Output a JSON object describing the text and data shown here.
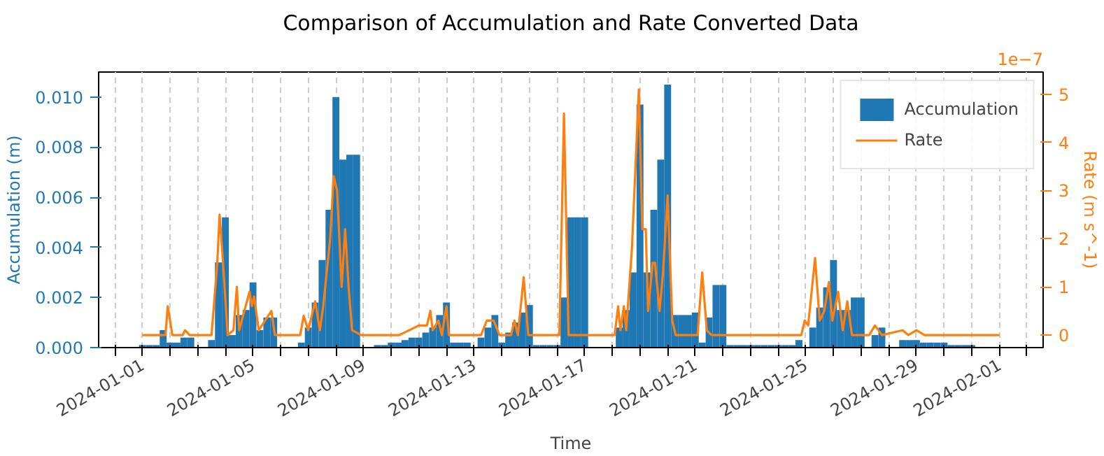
{
  "chart_data": {
    "type": "bar",
    "title": "Comparison of Accumulation and Rate Converted Data",
    "xlabel": "Time",
    "ylabel": "Accumulation (m)",
    "y2label": "Rate (m s^-1)",
    "annotations": [
      "1e−7"
    ],
    "xlim": [
      "2023-12-30T10:00",
      "2024-02-02T14:00"
    ],
    "xticks": [
      {
        "value": "2023-12-31",
        "label": null
      },
      {
        "value": "2024-01-01",
        "label": "2024-01-01"
      },
      {
        "value": "2024-01-02",
        "label": null
      },
      {
        "value": "2024-01-03",
        "label": null
      },
      {
        "value": "2024-01-04",
        "label": null
      },
      {
        "value": "2024-01-05",
        "label": "2024-01-05"
      },
      {
        "value": "2024-01-06",
        "label": null
      },
      {
        "value": "2024-01-07",
        "label": null
      },
      {
        "value": "2024-01-08",
        "label": null
      },
      {
        "value": "2024-01-09",
        "label": "2024-01-09"
      },
      {
        "value": "2024-01-10",
        "label": null
      },
      {
        "value": "2024-01-11",
        "label": null
      },
      {
        "value": "2024-01-12",
        "label": null
      },
      {
        "value": "2024-01-13",
        "label": "2024-01-13"
      },
      {
        "value": "2024-01-14",
        "label": null
      },
      {
        "value": "2024-01-15",
        "label": null
      },
      {
        "value": "2024-01-16",
        "label": null
      },
      {
        "value": "2024-01-17",
        "label": "2024-01-17"
      },
      {
        "value": "2024-01-18",
        "label": null
      },
      {
        "value": "2024-01-19",
        "label": null
      },
      {
        "value": "2024-01-20",
        "label": null
      },
      {
        "value": "2024-01-21",
        "label": "2024-01-21"
      },
      {
        "value": "2024-01-22",
        "label": null
      },
      {
        "value": "2024-01-23",
        "label": null
      },
      {
        "value": "2024-01-24",
        "label": null
      },
      {
        "value": "2024-01-25",
        "label": "2024-01-25"
      },
      {
        "value": "2024-01-26",
        "label": null
      },
      {
        "value": "2024-01-27",
        "label": null
      },
      {
        "value": "2024-01-28",
        "label": null
      },
      {
        "value": "2024-01-29",
        "label": "2024-01-29"
      },
      {
        "value": "2024-01-30",
        "label": null
      },
      {
        "value": "2024-01-31",
        "label": null
      },
      {
        "value": "2024-02-01",
        "label": "2024-02-01"
      },
      {
        "value": "2024-02-02",
        "label": null
      }
    ],
    "ylim": [
      0,
      0.011
    ],
    "yticks": [
      {
        "value": 0,
        "label": "0.000"
      },
      {
        "value": 0.002,
        "label": "0.002"
      },
      {
        "value": 0.004,
        "label": "0.004"
      },
      {
        "value": 0.006,
        "label": "0.006"
      },
      {
        "value": 0.008,
        "label": "0.008"
      },
      {
        "value": 0.01,
        "label": "0.010"
      }
    ],
    "y2lim": [
      -0.26,
      5.46
    ],
    "y2ticks": [
      0,
      1,
      2,
      3,
      4,
      5
    ],
    "grid": "x",
    "legend": "top right",
    "series": [
      {
        "name": "Accumulation",
        "color": "#1f77b4",
        "x": [
          "2024-01-01T00:00",
          "2024-01-01T06:00",
          "2024-01-01T12:00",
          "2024-01-01T18:00",
          "2024-01-02T00:00",
          "2024-01-02T06:00",
          "2024-01-02T12:00",
          "2024-01-02T18:00",
          "2024-01-03T12:00",
          "2024-01-03T18:00",
          "2024-01-04T00:00",
          "2024-01-04T06:00",
          "2024-01-04T12:00",
          "2024-01-04T18:00",
          "2024-01-05T00:00",
          "2024-01-05T06:00",
          "2024-01-05T12:00",
          "2024-01-05T18:00",
          "2024-01-06T18:00",
          "2024-01-07T00:00",
          "2024-01-07T06:00",
          "2024-01-07T12:00",
          "2024-01-07T18:00",
          "2024-01-08T00:00",
          "2024-01-08T06:00",
          "2024-01-08T12:00",
          "2024-01-08T18:00",
          "2024-01-09T12:00",
          "2024-01-09T18:00",
          "2024-01-10T00:00",
          "2024-01-10T06:00",
          "2024-01-10T12:00",
          "2024-01-10T18:00",
          "2024-01-11T00:00",
          "2024-01-11T06:00",
          "2024-01-11T12:00",
          "2024-01-11T18:00",
          "2024-01-12T00:00",
          "2024-01-12T06:00",
          "2024-01-12T12:00",
          "2024-01-12T18:00",
          "2024-01-13T06:00",
          "2024-01-13T12:00",
          "2024-01-13T18:00",
          "2024-01-14T00:00",
          "2024-01-14T06:00",
          "2024-01-14T12:00",
          "2024-01-14T18:00",
          "2024-01-15T00:00",
          "2024-01-15T06:00",
          "2024-01-15T12:00",
          "2024-01-15T18:00",
          "2024-01-16T00:00",
          "2024-01-16T06:00",
          "2024-01-16T12:00",
          "2024-01-16T18:00",
          "2024-01-17T00:00",
          "2024-01-18T06:00",
          "2024-01-18T12:00",
          "2024-01-18T18:00",
          "2024-01-19T00:00",
          "2024-01-19T06:00",
          "2024-01-19T12:00",
          "2024-01-19T18:00",
          "2024-01-20T00:00",
          "2024-01-20T06:00",
          "2024-01-20T12:00",
          "2024-01-20T18:00",
          "2024-01-21T00:00",
          "2024-01-21T06:00",
          "2024-01-21T12:00",
          "2024-01-21T18:00",
          "2024-01-22T00:00",
          "2024-01-22T06:00",
          "2024-01-22T12:00",
          "2024-01-22T18:00",
          "2024-01-23T00:00",
          "2024-01-23T06:00",
          "2024-01-23T12:00",
          "2024-01-23T18:00",
          "2024-01-24T00:00",
          "2024-01-24T06:00",
          "2024-01-24T12:00",
          "2024-01-24T18:00",
          "2024-01-25T06:00",
          "2024-01-25T12:00",
          "2024-01-25T18:00",
          "2024-01-26T00:00",
          "2024-01-26T06:00",
          "2024-01-26T12:00",
          "2024-01-26T18:00",
          "2024-01-27T00:00",
          "2024-01-27T12:00",
          "2024-01-27T18:00",
          "2024-01-28T12:00",
          "2024-01-28T18:00",
          "2024-01-29T00:00",
          "2024-01-29T06:00",
          "2024-01-29T12:00",
          "2024-01-29T18:00",
          "2024-01-30T00:00",
          "2024-01-30T06:00",
          "2024-01-30T12:00",
          "2024-01-30T18:00",
          "2024-01-31T00:00"
        ],
        "values": [
          0.0001,
          0.0001,
          0.0001,
          0.0007,
          0.0002,
          0.0002,
          0.0004,
          0.0004,
          0.0003,
          0.0034,
          0.0052,
          0.0005,
          0.0013,
          0.0015,
          0.0026,
          0.0007,
          0.0012,
          0.0012,
          0.0002,
          0.0008,
          0.0018,
          0.0035,
          0.0055,
          0.01,
          0.0075,
          0.0077,
          0.0077,
          0.0001,
          0.0001,
          0.0002,
          0.0002,
          0.0003,
          0.0004,
          0.0004,
          0.0006,
          0.0008,
          0.0013,
          0.0018,
          0.0002,
          0.0002,
          0.0002,
          0.0004,
          0.0008,
          0.0013,
          0.0002,
          0.0006,
          0.001,
          0.0014,
          0.0017,
          0.0001,
          0.0001,
          0.0001,
          0.0001,
          0.002,
          0.0052,
          0.0052,
          0.0052,
          0.0008,
          0.0015,
          0.003,
          0.0097,
          0.003,
          0.0055,
          0.0075,
          0.0105,
          0.0013,
          0.0013,
          0.0013,
          0.0014,
          0.0002,
          0.0012,
          0.0025,
          0.0025,
          0.0001,
          0.0001,
          0.0001,
          0.0001,
          0.0001,
          0.0001,
          0.0001,
          0.0001,
          0.0001,
          0.0001,
          0.0003,
          0.0008,
          0.0016,
          0.0024,
          0.0035,
          0.0015,
          0.0015,
          0.002,
          0.002,
          0.0005,
          0.0008,
          0.0003,
          0.0003,
          0.0003,
          0.0002,
          0.0002,
          0.0002,
          0.0002,
          0.0001,
          0.0001,
          0.0001,
          0.0001
        ]
      },
      {
        "name": "Rate",
        "type": "line",
        "axis": "y2",
        "color": "#ff7f0e",
        "x": [
          "2024-01-01T00:00",
          "2024-01-01T20:00",
          "2024-01-01T22:00",
          "2024-01-02T02:00",
          "2024-01-02T11:00",
          "2024-01-02T13:00",
          "2024-01-02T17:00",
          "2024-01-03T12:00",
          "2024-01-03T17:00",
          "2024-01-03T19:00",
          "2024-01-03T22:00",
          "2024-01-04T02:00",
          "2024-01-04T07:00",
          "2024-01-04T10:00",
          "2024-01-04T12:00",
          "2024-01-04T21:00",
          "2024-01-04T23:00",
          "2024-01-05T01:00",
          "2024-01-05T05:00",
          "2024-01-05T16:00",
          "2024-01-05T19:00",
          "2024-01-06T17:00",
          "2024-01-06T20:00",
          "2024-01-07T00:00",
          "2024-01-07T06:00",
          "2024-01-07T10:00",
          "2024-01-07T13:00",
          "2024-01-07T19:00",
          "2024-01-07T22:00",
          "2024-01-08T01:00",
          "2024-01-08T05:00",
          "2024-01-08T08:00",
          "2024-01-08T11:00",
          "2024-01-08T14:00",
          "2024-01-08T22:00",
          "2024-01-09T05:00",
          "2024-01-10T07:00",
          "2024-01-11T00:00",
          "2024-01-11T07:00",
          "2024-01-11T10:00",
          "2024-01-11T12:00",
          "2024-01-11T17:00",
          "2024-01-11T20:00",
          "2024-01-12T00:00",
          "2024-01-12T02:00",
          "2024-01-12T07:00",
          "2024-01-13T06:00",
          "2024-01-13T11:00",
          "2024-01-13T17:00",
          "2024-01-13T22:00",
          "2024-01-14T08:00",
          "2024-01-14T11:00",
          "2024-01-14T14:00",
          "2024-01-14T19:00",
          "2024-01-14T23:00",
          "2024-01-16T02:00",
          "2024-01-16T06:00",
          "2024-01-16T10:00",
          "2024-01-18T02:00",
          "2024-01-18T05:00",
          "2024-01-18T07:00",
          "2024-01-18T10:00",
          "2024-01-18T12:00",
          "2024-01-18T17:00",
          "2024-01-18T23:00",
          "2024-01-19T02:00",
          "2024-01-19T05:00",
          "2024-01-19T07:00",
          "2024-01-19T11:00",
          "2024-01-19T13:00",
          "2024-01-19T17:00",
          "2024-01-19T20:00",
          "2024-01-20T00:00",
          "2024-01-20T04:00",
          "2024-01-20T07:00",
          "2024-01-20T12:00",
          "2024-01-21T02:00",
          "2024-01-21T06:00",
          "2024-01-21T10:00",
          "2024-01-21T14:00",
          "2024-01-24T20:00",
          "2024-01-24T23:00",
          "2024-01-25T02:00",
          "2024-01-25T08:00",
          "2024-01-25T12:00",
          "2024-01-25T16:00",
          "2024-01-25T20:00",
          "2024-01-25T23:00",
          "2024-01-26T04:00",
          "2024-01-26T08:00",
          "2024-01-26T12:00",
          "2024-01-26T16:00",
          "2024-01-27T07:00",
          "2024-01-27T12:00",
          "2024-01-27T18:00",
          "2024-01-28T12:00",
          "2024-01-28T17:00",
          "2024-01-29T00:00",
          "2024-01-29T07:00",
          "2024-02-01T00:00"
        ],
        "values": [
          0,
          0,
          0.6,
          0,
          0,
          0.1,
          0,
          0,
          1.5,
          2.5,
          1.5,
          0,
          0.1,
          1.0,
          0.1,
          0.9,
          0.6,
          0.8,
          0.1,
          0.5,
          0,
          0,
          0.4,
          0.1,
          0.7,
          0.1,
          0.6,
          2.0,
          3.3,
          3.0,
          1.0,
          2.2,
          1.0,
          0.1,
          0,
          0,
          0,
          0.2,
          0.2,
          0.5,
          0.1,
          0.3,
          0,
          0.6,
          0,
          0,
          0,
          0.3,
          0.3,
          0,
          0,
          0.3,
          0,
          1.2,
          0,
          0,
          4.6,
          0,
          0,
          0.6,
          0.1,
          0.6,
          0.1,
          1.8,
          5.1,
          2.2,
          2.2,
          0.5,
          1.5,
          1.5,
          0.5,
          1.3,
          2.9,
          0.3,
          0,
          0,
          0,
          1.3,
          0.1,
          0,
          0,
          0.3,
          0.2,
          1.6,
          0.3,
          0.5,
          1.1,
          0.3,
          0.9,
          0.1,
          0.7,
          0,
          0,
          0.2,
          0,
          0.1,
          0,
          0.1,
          0,
          0
        ]
      }
    ]
  }
}
